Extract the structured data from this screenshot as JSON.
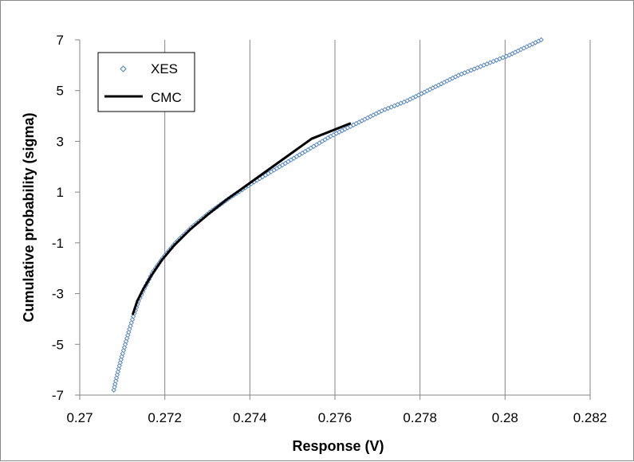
{
  "chart_data": {
    "type": "scatter",
    "xlabel": "Response (V)",
    "ylabel": "Cumulative probability (sigma)",
    "xlim": [
      0.27,
      0.282
    ],
    "ylim": [
      -7,
      7
    ],
    "x_ticks": [
      "0.27",
      "0.272",
      "0.274",
      "0.276",
      "0.278",
      "0.28",
      "0.282"
    ],
    "y_ticks": [
      "7",
      "5",
      "3",
      "1",
      "-1",
      "-3",
      "-5",
      "-7"
    ],
    "grid": "vertical",
    "legend_position": "top-left",
    "series": [
      {
        "name": "XES",
        "style": "markers",
        "marker": "diamond",
        "color": "#4f81bd",
        "points": [
          [
            0.2708,
            -6.8
          ],
          [
            0.27088,
            -6.2
          ],
          [
            0.27097,
            -5.6
          ],
          [
            0.27107,
            -5.0
          ],
          [
            0.27117,
            -4.4
          ],
          [
            0.27126,
            -3.9
          ],
          [
            0.27138,
            -3.3
          ],
          [
            0.27152,
            -2.8
          ],
          [
            0.2717,
            -2.2
          ],
          [
            0.27195,
            -1.6
          ],
          [
            0.27225,
            -1.0
          ],
          [
            0.27262,
            -0.4
          ],
          [
            0.27305,
            0.2
          ],
          [
            0.27355,
            0.8
          ],
          [
            0.2741,
            1.4
          ],
          [
            0.2747,
            2.0
          ],
          [
            0.2753,
            2.6
          ],
          [
            0.2759,
            3.2
          ],
          [
            0.2765,
            3.7
          ],
          [
            0.2771,
            4.2
          ],
          [
            0.2777,
            4.6
          ],
          [
            0.2783,
            5.1
          ],
          [
            0.2789,
            5.6
          ],
          [
            0.2795,
            6.0
          ],
          [
            0.2801,
            6.4
          ],
          [
            0.28085,
            7.0
          ]
        ]
      },
      {
        "name": "CMC",
        "style": "line",
        "color": "#000000",
        "points": [
          [
            0.27125,
            -3.8
          ],
          [
            0.27135,
            -3.3
          ],
          [
            0.2715,
            -2.8
          ],
          [
            0.27168,
            -2.3
          ],
          [
            0.27192,
            -1.7
          ],
          [
            0.27222,
            -1.1
          ],
          [
            0.27258,
            -0.5
          ],
          [
            0.273,
            0.1
          ],
          [
            0.27345,
            0.7
          ],
          [
            0.27395,
            1.3
          ],
          [
            0.27445,
            1.9
          ],
          [
            0.27495,
            2.5
          ],
          [
            0.27545,
            3.1
          ],
          [
            0.2759,
            3.4
          ],
          [
            0.27635,
            3.7
          ]
        ]
      }
    ]
  }
}
